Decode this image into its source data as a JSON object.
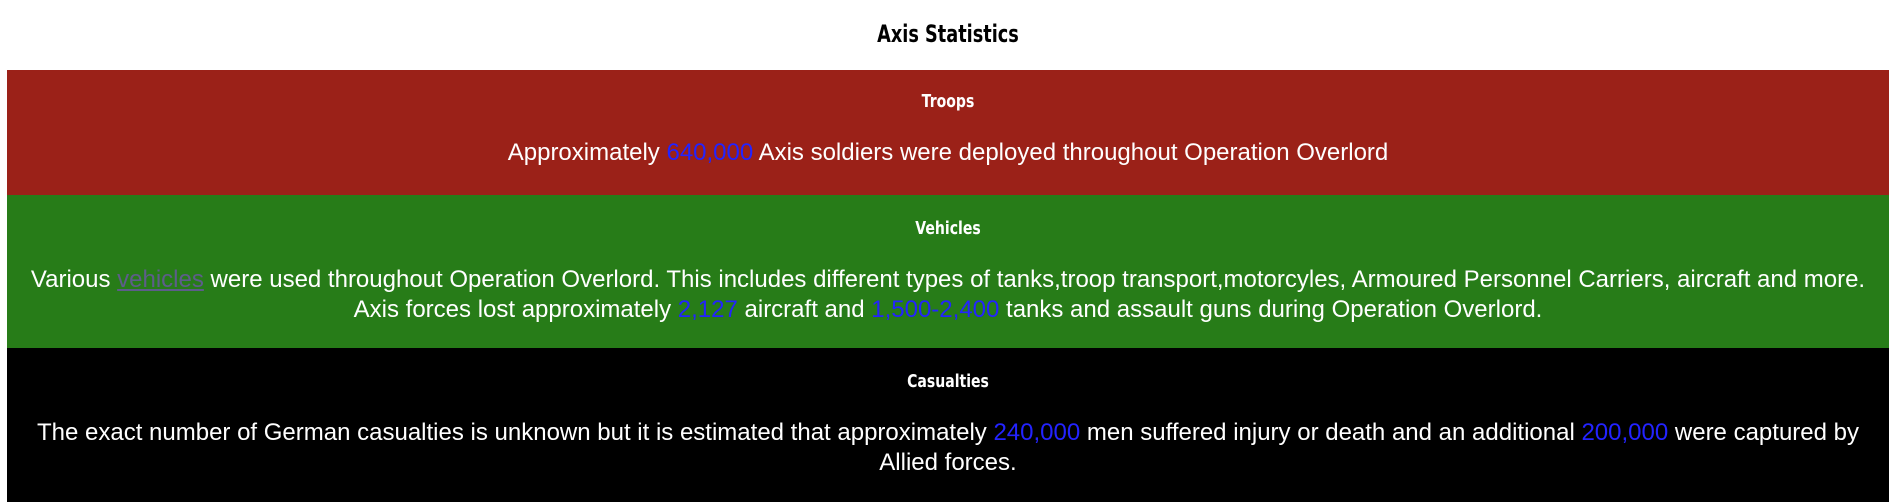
{
  "page": {
    "title": "Axis Statistics"
  },
  "troops": {
    "heading": "Troops",
    "text_1": "Approximately ",
    "num_1": "640,000",
    "text_2": " Axis soldiers were deployed throughout Operation Overlord"
  },
  "vehicles": {
    "heading": "Vehicles",
    "text_1": "Various ",
    "link": "vehicles",
    "text_2": " were used throughout Operation Overlord. This includes different types of tanks,troop transport,motorcyles, Armoured Personnel Carriers, aircraft and more. Axis forces lost approximately ",
    "num_1": "2,127",
    "text_3": " aircraft and ",
    "num_2": "1,500-2,400",
    "text_4": " tanks and assault guns during Operation Overlord."
  },
  "casualties": {
    "heading": "Casualties",
    "text_1": "The exact number of German casualties is unknown but it is estimated that approximately ",
    "num_1": "240,000",
    "text_2": " men suffered injury or death and an additional ",
    "num_2": "200,000",
    "text_3": " were captured by Allied forces."
  },
  "colors": {
    "troops_bg": "#9b2118",
    "vehicles_bg": "#277c18",
    "casualties_bg": "#000000",
    "number_highlight": "#2323ff",
    "link": "#5d5d8a"
  }
}
